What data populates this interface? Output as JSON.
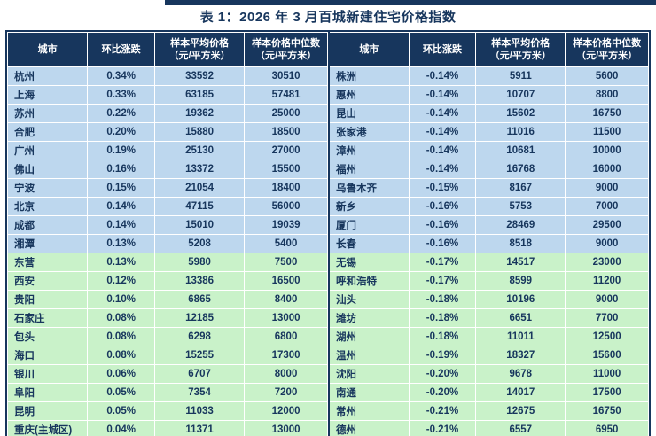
{
  "title": "表 1：2026 年 3 月百城新建住宅价格指数",
  "columns": {
    "city": "城市",
    "change": "环比涨跌",
    "avg_line1": "样本平均价格",
    "avg_line2": "（元/平方米）",
    "median_line1": "样本价格中位数",
    "median_line2": "（元/平方米）"
  },
  "colors": {
    "header-bg": "#17365D",
    "text": "#17365D",
    "rule": "#17365D",
    "row-blue": "#BDD7EE",
    "row-green": "#C9F2C9"
  },
  "left_table": {
    "rows": [
      {
        "city": "杭州",
        "change": "0.34%",
        "avg": "33592",
        "median": "30510"
      },
      {
        "city": "上海",
        "change": "0.33%",
        "avg": "63185",
        "median": "57481"
      },
      {
        "city": "苏州",
        "change": "0.22%",
        "avg": "19362",
        "median": "25000"
      },
      {
        "city": "合肥",
        "change": "0.20%",
        "avg": "15880",
        "median": "18500"
      },
      {
        "city": "广州",
        "change": "0.19%",
        "avg": "25130",
        "median": "27000"
      },
      {
        "city": "佛山",
        "change": "0.16%",
        "avg": "13372",
        "median": "15500"
      },
      {
        "city": "宁波",
        "change": "0.15%",
        "avg": "21054",
        "median": "18400"
      },
      {
        "city": "北京",
        "change": "0.14%",
        "avg": "47115",
        "median": "56000"
      },
      {
        "city": "成都",
        "change": "0.14%",
        "avg": "15010",
        "median": "19039"
      },
      {
        "city": "湘潭",
        "change": "0.13%",
        "avg": "5208",
        "median": "5400"
      },
      {
        "city": "东营",
        "change": "0.13%",
        "avg": "5980",
        "median": "7500"
      },
      {
        "city": "西安",
        "change": "0.12%",
        "avg": "13386",
        "median": "16500"
      },
      {
        "city": "贵阳",
        "change": "0.10%",
        "avg": "6865",
        "median": "8400"
      },
      {
        "city": "石家庄",
        "change": "0.08%",
        "avg": "12185",
        "median": "13000"
      },
      {
        "city": "包头",
        "change": "0.08%",
        "avg": "6298",
        "median": "6800"
      },
      {
        "city": "海口",
        "change": "0.08%",
        "avg": "15255",
        "median": "17300"
      },
      {
        "city": "银川",
        "change": "0.06%",
        "avg": "6707",
        "median": "8000"
      },
      {
        "city": "阜阳",
        "change": "0.05%",
        "avg": "7354",
        "median": "7200"
      },
      {
        "city": "昆明",
        "change": "0.05%",
        "avg": "11033",
        "median": "12000"
      },
      {
        "city": "重庆(主城区)",
        "change": "0.04%",
        "avg": "11371",
        "median": "13000"
      }
    ]
  },
  "right_table": {
    "rows": [
      {
        "city": "株洲",
        "change": "-0.14%",
        "avg": "5911",
        "median": "5600"
      },
      {
        "city": "惠州",
        "change": "-0.14%",
        "avg": "10707",
        "median": "8800"
      },
      {
        "city": "昆山",
        "change": "-0.14%",
        "avg": "15602",
        "median": "16750"
      },
      {
        "city": "张家港",
        "change": "-0.14%",
        "avg": "11016",
        "median": "11500"
      },
      {
        "city": "漳州",
        "change": "-0.14%",
        "avg": "10681",
        "median": "10000"
      },
      {
        "city": "福州",
        "change": "-0.14%",
        "avg": "16768",
        "median": "16000"
      },
      {
        "city": "乌鲁木齐",
        "change": "-0.15%",
        "avg": "8167",
        "median": "9000"
      },
      {
        "city": "新乡",
        "change": "-0.16%",
        "avg": "5753",
        "median": "7000"
      },
      {
        "city": "厦门",
        "change": "-0.16%",
        "avg": "28469",
        "median": "29500"
      },
      {
        "city": "长春",
        "change": "-0.16%",
        "avg": "8518",
        "median": "9000"
      },
      {
        "city": "无锡",
        "change": "-0.17%",
        "avg": "14517",
        "median": "23000"
      },
      {
        "city": "呼和浩特",
        "change": "-0.17%",
        "avg": "8599",
        "median": "11200"
      },
      {
        "city": "汕头",
        "change": "-0.18%",
        "avg": "10196",
        "median": "9000"
      },
      {
        "city": "潍坊",
        "change": "-0.18%",
        "avg": "6651",
        "median": "7700"
      },
      {
        "city": "湖州",
        "change": "-0.18%",
        "avg": "11011",
        "median": "12500"
      },
      {
        "city": "温州",
        "change": "-0.19%",
        "avg": "18327",
        "median": "15600"
      },
      {
        "city": "沈阳",
        "change": "-0.20%",
        "avg": "9678",
        "median": "11000"
      },
      {
        "city": "南通",
        "change": "-0.20%",
        "avg": "14017",
        "median": "17500"
      },
      {
        "city": "常州",
        "change": "-0.21%",
        "avg": "12675",
        "median": "16750"
      },
      {
        "city": "德州",
        "change": "-0.21%",
        "avg": "6557",
        "median": "6950"
      }
    ]
  }
}
